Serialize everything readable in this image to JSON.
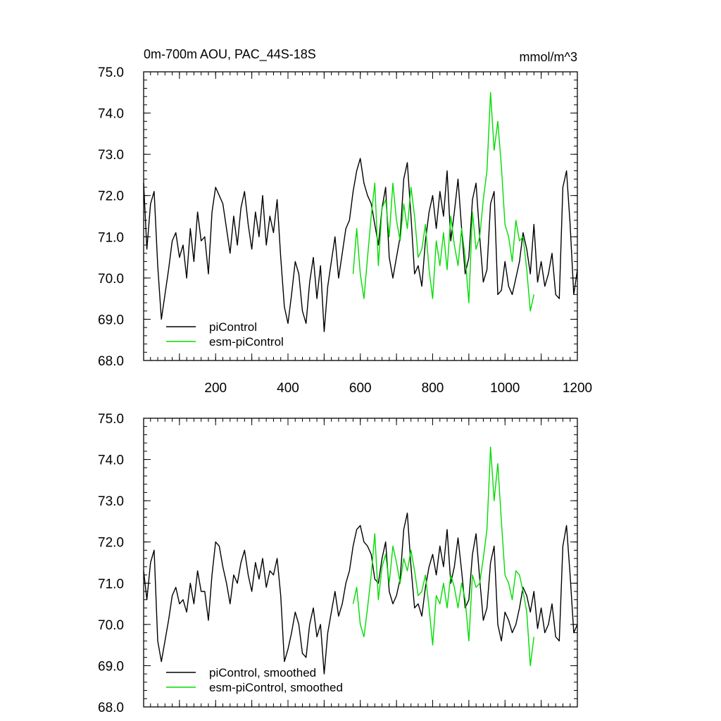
{
  "chart_data": [
    {
      "type": "line",
      "title": "0m-700m AOU, PAC_44S-18S",
      "units": "mmol/m^3",
      "xlim": [
        1,
        1200
      ],
      "ylim": [
        68.0,
        75.0
      ],
      "x_ticks": [
        200,
        400,
        600,
        800,
        1000,
        1200
      ],
      "y_ticks": [
        "68.0",
        "69.0",
        "70.0",
        "71.0",
        "72.0",
        "73.0",
        "74.0",
        "75.0"
      ],
      "series": [
        {
          "name": "piControl",
          "color": "#000000",
          "x": [
            1,
            10,
            20,
            30,
            40,
            50,
            60,
            70,
            80,
            90,
            100,
            110,
            120,
            130,
            140,
            150,
            160,
            170,
            180,
            190,
            200,
            210,
            220,
            230,
            240,
            250,
            260,
            270,
            280,
            290,
            300,
            310,
            320,
            330,
            340,
            350,
            360,
            370,
            380,
            390,
            400,
            410,
            420,
            430,
            440,
            450,
            460,
            470,
            480,
            490,
            500,
            510,
            520,
            530,
            540,
            550,
            560,
            570,
            580,
            590,
            600,
            610,
            620,
            630,
            640,
            650,
            660,
            670,
            680,
            690,
            700,
            710,
            720,
            730,
            740,
            750,
            760,
            770,
            780,
            790,
            800,
            810,
            820,
            830,
            840,
            850,
            860,
            870,
            880,
            890,
            900,
            910,
            920,
            930,
            940,
            950,
            960,
            970,
            980,
            990,
            1000,
            1010,
            1020,
            1030,
            1040,
            1050,
            1060,
            1070,
            1080,
            1090,
            1100,
            1110,
            1120,
            1130,
            1140,
            1150,
            1160,
            1170,
            1180,
            1190,
            1200
          ],
          "values": [
            72.3,
            70.7,
            71.8,
            72.1,
            70.3,
            69.0,
            69.6,
            70.2,
            70.9,
            71.1,
            70.5,
            70.8,
            70.0,
            71.2,
            70.4,
            71.6,
            70.9,
            71.0,
            70.1,
            71.6,
            72.2,
            72.0,
            71.8,
            71.2,
            70.6,
            71.5,
            70.8,
            71.7,
            72.1,
            71.3,
            70.7,
            71.6,
            71.0,
            72.0,
            70.8,
            71.5,
            71.1,
            71.9,
            70.5,
            69.3,
            68.9,
            69.6,
            70.4,
            70.1,
            69.2,
            68.9,
            69.9,
            70.5,
            69.5,
            70.3,
            68.7,
            69.8,
            70.4,
            71.0,
            70.0,
            70.6,
            71.2,
            71.4,
            72.1,
            72.6,
            72.9,
            72.3,
            72.0,
            71.8,
            71.3,
            70.8,
            71.7,
            72.2,
            70.5,
            70.0,
            70.5,
            71.0,
            72.4,
            72.8,
            71.5,
            70.1,
            70.3,
            69.8,
            70.9,
            71.6,
            72.0,
            71.2,
            72.1,
            71.5,
            72.6,
            70.9,
            71.6,
            72.4,
            71.2,
            70.1,
            70.5,
            71.9,
            72.3,
            71.0,
            69.9,
            70.2,
            71.8,
            72.1,
            69.6,
            69.7,
            70.4,
            69.8,
            69.6,
            70.0,
            70.4,
            71.1,
            70.7,
            70.1,
            71.3,
            69.9,
            70.4,
            69.8,
            70.1,
            70.6,
            69.6,
            69.5,
            72.2,
            72.6,
            71.3,
            69.6,
            70.2
          ]
        },
        {
          "name": "esm-piControl",
          "color": "#00dd00",
          "x": [
            580,
            590,
            600,
            610,
            620,
            630,
            640,
            650,
            660,
            670,
            680,
            690,
            700,
            710,
            720,
            730,
            740,
            750,
            760,
            770,
            780,
            790,
            800,
            810,
            820,
            830,
            840,
            850,
            860,
            870,
            880,
            890,
            900,
            910,
            920,
            930,
            940,
            950,
            960,
            970,
            980,
            990,
            1000,
            1010,
            1020,
            1030,
            1040,
            1050,
            1060,
            1070,
            1080
          ],
          "values": [
            70.1,
            71.2,
            70.1,
            69.5,
            70.5,
            71.5,
            72.3,
            70.3,
            71.7,
            71.9,
            71.0,
            72.3,
            71.4,
            70.9,
            71.8,
            71.2,
            72.2,
            71.5,
            70.5,
            70.7,
            71.3,
            70.2,
            69.5,
            70.9,
            70.3,
            71.1,
            70.2,
            71.5,
            70.8,
            70.3,
            71.2,
            70.5,
            69.4,
            71.6,
            70.7,
            71.0,
            71.9,
            72.6,
            74.5,
            73.1,
            73.8,
            72.7,
            71.3,
            71.0,
            70.4,
            71.4,
            70.9,
            71.0,
            70.2,
            69.2,
            69.6
          ]
        }
      ]
    },
    {
      "type": "line",
      "xlim": [
        1,
        1200
      ],
      "ylim": [
        68.0,
        75.0
      ],
      "y_ticks": [
        "68.0",
        "69.0",
        "70.0",
        "71.0",
        "72.0",
        "73.0",
        "74.0",
        "75.0"
      ],
      "series": [
        {
          "name": "piControl, smoothed",
          "color": "#000000",
          "x": [
            1,
            10,
            20,
            30,
            40,
            50,
            60,
            70,
            80,
            90,
            100,
            110,
            120,
            130,
            140,
            150,
            160,
            170,
            180,
            190,
            200,
            210,
            220,
            230,
            240,
            250,
            260,
            270,
            280,
            290,
            300,
            310,
            320,
            330,
            340,
            350,
            360,
            370,
            380,
            390,
            400,
            410,
            420,
            430,
            440,
            450,
            460,
            470,
            480,
            490,
            500,
            510,
            520,
            530,
            540,
            550,
            560,
            570,
            580,
            590,
            600,
            610,
            620,
            630,
            640,
            650,
            660,
            670,
            680,
            690,
            700,
            710,
            720,
            730,
            740,
            750,
            760,
            770,
            780,
            790,
            800,
            810,
            820,
            830,
            840,
            850,
            860,
            870,
            880,
            890,
            900,
            910,
            920,
            930,
            940,
            950,
            960,
            970,
            980,
            990,
            1000,
            1010,
            1020,
            1030,
            1040,
            1050,
            1060,
            1070,
            1080,
            1090,
            1100,
            1110,
            1120,
            1130,
            1140,
            1150,
            1160,
            1170,
            1180,
            1190,
            1200
          ],
          "values": [
            71.3,
            70.6,
            71.5,
            71.8,
            69.6,
            69.1,
            69.6,
            70.1,
            70.7,
            70.9,
            70.5,
            70.6,
            70.3,
            71.0,
            70.5,
            71.3,
            70.8,
            70.8,
            70.1,
            71.2,
            72.0,
            71.9,
            71.4,
            71.0,
            70.5,
            71.2,
            71.0,
            71.5,
            71.8,
            71.2,
            70.8,
            71.5,
            71.1,
            71.6,
            70.9,
            71.3,
            71.2,
            71.6,
            70.7,
            69.1,
            69.4,
            69.8,
            70.3,
            70.0,
            69.3,
            69.2,
            70.0,
            70.4,
            69.7,
            70.0,
            68.8,
            69.8,
            70.3,
            70.8,
            70.2,
            70.5,
            71.0,
            71.3,
            71.9,
            72.3,
            72.4,
            72.0,
            71.9,
            71.7,
            71.1,
            71.0,
            71.6,
            72.0,
            70.8,
            70.5,
            70.7,
            71.1,
            72.3,
            72.7,
            71.4,
            70.4,
            70.5,
            70.2,
            70.9,
            71.4,
            71.7,
            71.2,
            71.9,
            71.4,
            72.3,
            71.0,
            71.4,
            72.1,
            71.3,
            70.4,
            70.6,
            71.7,
            72.2,
            71.1,
            70.1,
            70.4,
            71.5,
            71.9,
            70.0,
            69.6,
            70.3,
            70.1,
            69.8,
            70.0,
            70.4,
            70.9,
            70.7,
            70.3,
            70.8,
            69.9,
            70.4,
            69.8,
            70.0,
            70.5,
            69.7,
            69.6,
            71.9,
            72.4,
            71.2,
            69.8,
            70.0
          ]
        },
        {
          "name": "esm-piControl, smoothed",
          "color": "#00dd00",
          "x": [
            580,
            590,
            600,
            610,
            620,
            630,
            640,
            650,
            660,
            670,
            680,
            690,
            700,
            710,
            720,
            730,
            740,
            750,
            760,
            770,
            780,
            790,
            800,
            810,
            820,
            830,
            840,
            850,
            860,
            870,
            880,
            890,
            900,
            910,
            920,
            930,
            940,
            950,
            960,
            970,
            980,
            990,
            1000,
            1010,
            1020,
            1030,
            1040,
            1050,
            1060,
            1070,
            1080
          ],
          "values": [
            70.5,
            70.9,
            70.0,
            69.7,
            70.4,
            71.2,
            72.2,
            70.6,
            71.4,
            71.7,
            71.0,
            71.9,
            71.5,
            71.0,
            71.6,
            71.3,
            71.8,
            71.3,
            70.7,
            70.8,
            71.2,
            70.4,
            69.5,
            70.7,
            70.5,
            71.0,
            70.4,
            71.2,
            70.9,
            70.4,
            71.0,
            70.6,
            69.6,
            71.2,
            70.9,
            71.0,
            71.6,
            72.3,
            74.3,
            73.0,
            73.9,
            72.5,
            71.2,
            71.0,
            70.6,
            71.3,
            71.2,
            70.8,
            70.3,
            69.0,
            69.7
          ]
        }
      ]
    }
  ]
}
